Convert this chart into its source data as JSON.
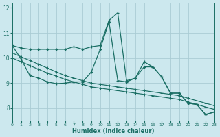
{
  "xlabel": "Humidex (Indice chaleur)",
  "bg_color": "#cce8ee",
  "grid_color": "#aaccd4",
  "line_color": "#1a6e64",
  "xlim": [
    0,
    23
  ],
  "ylim": [
    7.5,
    12.2
  ],
  "yticks": [
    8,
    9,
    10,
    11,
    12
  ],
  "xticks": [
    0,
    1,
    2,
    3,
    4,
    5,
    6,
    7,
    8,
    9,
    10,
    11,
    12,
    13,
    14,
    15,
    16,
    17,
    18,
    19,
    20,
    21,
    22,
    23
  ],
  "line1_x": [
    0,
    1,
    2,
    3,
    4,
    5,
    6,
    7,
    8,
    9,
    10,
    11,
    12,
    13,
    14,
    15,
    16,
    17,
    18,
    19,
    20,
    21,
    22,
    23
  ],
  "line1_y": [
    10.5,
    10.4,
    10.35,
    10.35,
    10.35,
    10.35,
    10.35,
    10.45,
    10.35,
    10.45,
    10.5,
    11.5,
    11.8,
    9.1,
    9.2,
    9.85,
    9.65,
    9.25,
    8.6,
    8.6,
    8.2,
    8.15,
    7.75,
    7.85
  ],
  "line2_x": [
    0,
    1,
    2,
    3,
    4,
    5,
    6,
    7,
    8,
    9,
    10,
    11,
    12,
    13,
    14,
    15,
    16,
    17,
    18,
    19,
    20,
    21,
    22,
    23
  ],
  "line2_y": [
    10.5,
    9.95,
    9.3,
    9.2,
    9.05,
    8.98,
    9.0,
    9.05,
    9.05,
    9.45,
    10.35,
    11.45,
    9.1,
    9.05,
    9.2,
    9.65,
    9.65,
    9.25,
    8.6,
    8.6,
    8.2,
    8.15,
    7.75,
    7.85
  ],
  "line3_x": [
    0,
    1,
    2,
    3,
    4,
    5,
    6,
    7,
    8,
    9,
    10,
    11,
    12,
    13,
    14,
    15,
    16,
    17,
    18,
    19,
    20,
    21,
    22,
    23
  ],
  "line3_y": [
    10.2,
    10.05,
    9.9,
    9.75,
    9.6,
    9.45,
    9.3,
    9.2,
    9.1,
    9.0,
    8.95,
    8.9,
    8.85,
    8.8,
    8.75,
    8.7,
    8.65,
    8.6,
    8.55,
    8.5,
    8.4,
    8.3,
    8.2,
    8.1
  ],
  "line4_x": [
    0,
    1,
    2,
    3,
    4,
    5,
    6,
    7,
    8,
    9,
    10,
    11,
    12,
    13,
    14,
    15,
    16,
    17,
    18,
    19,
    20,
    21,
    22,
    23
  ],
  "line4_y": [
    10.0,
    9.85,
    9.7,
    9.55,
    9.4,
    9.28,
    9.15,
    9.05,
    8.95,
    8.85,
    8.8,
    8.75,
    8.7,
    8.65,
    8.6,
    8.55,
    8.5,
    8.45,
    8.4,
    8.35,
    8.25,
    8.15,
    8.05,
    7.95
  ]
}
